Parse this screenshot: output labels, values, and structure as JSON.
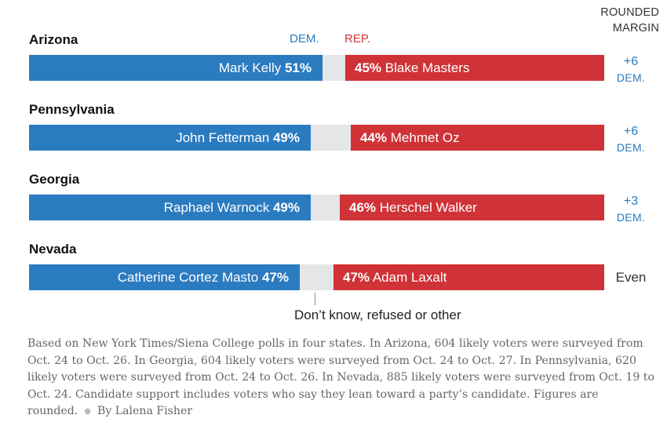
{
  "chart_data": {
    "type": "bar",
    "stacked": true,
    "orientation": "horizontal",
    "header": {
      "dem_label": "DEM.",
      "rep_label": "REP.",
      "margin_label_line1": "ROUNDED",
      "margin_label_line2": "MARGIN"
    },
    "colors": {
      "dem": "#2b7bc0",
      "rep": "#cf3237",
      "other": "#e5e6e8"
    },
    "categories": [
      "Arizona",
      "Pennsylvania",
      "Georgia",
      "Nevada"
    ],
    "races": [
      {
        "state": "Arizona",
        "dem_name": "Mark Kelly",
        "dem_pct": 51,
        "dem_pct_text": "51%",
        "rep_name": "Blake Masters",
        "rep_pct": 45,
        "rep_pct_text": "45%",
        "margin_value": "+6",
        "margin_party": "DEM."
      },
      {
        "state": "Pennsylvania",
        "dem_name": "John Fetterman",
        "dem_pct": 49,
        "dem_pct_text": "49%",
        "rep_name": "Mehmet Oz",
        "rep_pct": 44,
        "rep_pct_text": "44%",
        "margin_value": "+6",
        "margin_party": "DEM."
      },
      {
        "state": "Georgia",
        "dem_name": "Raphael Warnock",
        "dem_pct": 49,
        "dem_pct_text": "49%",
        "rep_name": "Herschel Walker",
        "rep_pct": 46,
        "rep_pct_text": "46%",
        "margin_value": "+3",
        "margin_party": "DEM."
      },
      {
        "state": "Nevada",
        "dem_name": "Catherine Cortez Masto",
        "dem_pct": 47,
        "dem_pct_text": "47%",
        "rep_name": "Adam Laxalt",
        "rep_pct": 47,
        "rep_pct_text": "47%",
        "margin_value": "Even",
        "margin_party": ""
      }
    ],
    "other_label": "Don’t know, refused or other",
    "xlim": [
      0,
      100
    ]
  },
  "note": {
    "text": "Based on New York Times/Siena College polls in four states. In Arizona, 604 likely voters were surveyed from Oct. 24 to Oct. 26. In Georgia, 604 likely voters were surveyed from Oct. 24 to Oct. 27. In Pennsylvania, 620 likely voters were surveyed from Oct. 24 to Oct. 26. In Nevada, 885 likely voters were surveyed from Oct. 19 to Oct. 24. Candidate support includes voters who say they lean toward a party’s candidate. Figures are rounded.",
    "byline": "By Lalena Fisher"
  }
}
